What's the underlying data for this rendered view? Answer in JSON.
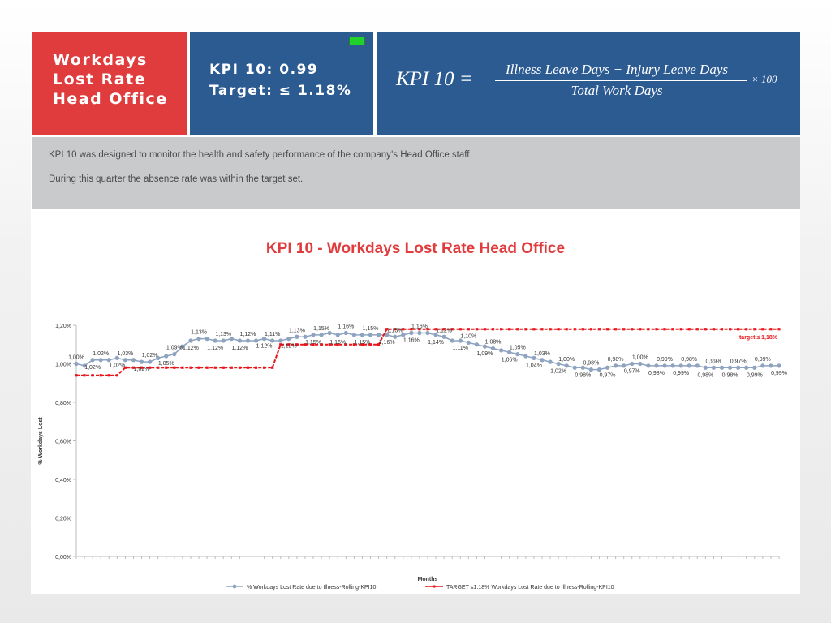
{
  "header": {
    "title_lines": "Workdays\nLost Rate\nHead Office",
    "kpi_value": "KPI 10: 0.99",
    "kpi_target": "Target: ≤ 1.18%",
    "formula": {
      "lhs": "KPI  10  =",
      "numerator": "Illness Leave Days + Injury Leave Days",
      "denominator": "Total Work Days",
      "multiplier": "× 100"
    }
  },
  "description": {
    "line1": "KPI 10 was designed to monitor the health and safety performance of the company’s Head Office staff.",
    "line2": "During this quarter the absence rate was within the target set."
  },
  "colors": {
    "red": "#e03c3d",
    "blue": "#2c5b92",
    "series_rate": "#8ea3bf",
    "series_target": "#e8151b"
  },
  "chart_data": {
    "type": "line",
    "title": "KPI 10 - Workdays Lost  Rate Head Office",
    "xlabel": "Months",
    "ylabel": "% Workdays Lost",
    "ylim": [
      0,
      1.2
    ],
    "y_ticks": [
      "0,00%",
      "0,20%",
      "0,40%",
      "0,60%",
      "0,80%",
      "1,00%",
      "1,20%"
    ],
    "series": [
      {
        "name": "% Workdays Lost Rate due to Illness-Rolling-KPI10",
        "values": [
          1.0,
          0.99,
          1.02,
          1.02,
          1.02,
          1.03,
          1.02,
          1.02,
          1.01,
          1.01,
          1.03,
          1.04,
          1.05,
          1.09,
          1.12,
          1.13,
          1.13,
          1.12,
          1.12,
          1.13,
          1.12,
          1.12,
          1.12,
          1.13,
          1.12,
          1.12,
          1.13,
          1.14,
          1.14,
          1.15,
          1.15,
          1.16,
          1.15,
          1.16,
          1.15,
          1.15,
          1.15,
          1.15,
          1.15,
          1.14,
          1.15,
          1.16,
          1.16,
          1.16,
          1.15,
          1.14,
          1.12,
          1.12,
          1.11,
          1.1,
          1.09,
          1.08,
          1.07,
          1.06,
          1.05,
          1.04,
          1.03,
          1.02,
          1.01,
          1.0,
          0.99,
          0.98,
          0.98,
          0.97,
          0.97,
          0.98,
          0.99,
          0.99,
          1.0,
          1.0,
          0.99,
          0.99,
          0.99,
          0.99,
          0.99,
          0.99,
          0.99,
          0.98,
          0.98,
          0.98,
          0.98,
          0.98,
          0.98,
          0.98,
          0.99,
          0.99,
          0.99
        ],
        "labels_shown": [
          "1,00%",
          "1,02%",
          "1,02%",
          "1,02%",
          "1,03%",
          "1,02%",
          "1,02%",
          "1,05%",
          "1,09%",
          "1,12%",
          "1,13%",
          "1,12%",
          "1,13%",
          "1,12%",
          "1,12%",
          "1,12%",
          "1,11%",
          "1,12%",
          "1,13%",
          "1,15%",
          "1,15%",
          "1,16%",
          "1,16%",
          "1,15%",
          "1,15%",
          "1,16%",
          "1,15%",
          "1,16%",
          "1,16%",
          "1,14%",
          "1,12%",
          "1,11%",
          "1,10%",
          "1,09%",
          "1,08%",
          "1,06%",
          "1,05%",
          "1,04%",
          "1,03%",
          "1,02%",
          "1,00%",
          "0,98%",
          "0,98%",
          "0,97%",
          "0,98%",
          "0,97%",
          "1,00%",
          "0,98%",
          "0,99%",
          "0,99%",
          "0,98%",
          "0,98%",
          "0,99%",
          "0,98%",
          "0,97%",
          "0,99%",
          "0,99%",
          "0,99%"
        ]
      },
      {
        "name": "TARGET ≤1.18% Workdays Lost Rate due to Illness-Rolling-KPI10",
        "values": [
          0.94,
          0.94,
          0.94,
          0.94,
          0.94,
          0.94,
          0.98,
          0.98,
          0.98,
          0.98,
          0.98,
          0.98,
          0.98,
          0.98,
          0.98,
          0.98,
          0.98,
          0.98,
          0.98,
          0.98,
          0.98,
          0.98,
          0.98,
          0.98,
          0.98,
          1.1,
          1.1,
          1.1,
          1.1,
          1.1,
          1.1,
          1.1,
          1.1,
          1.1,
          1.1,
          1.1,
          1.1,
          1.1,
          1.18,
          1.18,
          1.18,
          1.18,
          1.18,
          1.18,
          1.18,
          1.18,
          1.18,
          1.18,
          1.18,
          1.18,
          1.18,
          1.18,
          1.18,
          1.18,
          1.18,
          1.18,
          1.18,
          1.18,
          1.18,
          1.18,
          1.18,
          1.18,
          1.18,
          1.18,
          1.18,
          1.18,
          1.18,
          1.18,
          1.18,
          1.18,
          1.18,
          1.18,
          1.18,
          1.18,
          1.18,
          1.18,
          1.18,
          1.18,
          1.18,
          1.18,
          1.18,
          1.18,
          1.18,
          1.18,
          1.18,
          1.18,
          1.18
        ],
        "end_label": "target ≤ 1,18%"
      }
    ],
    "legend_position": "bottom"
  }
}
